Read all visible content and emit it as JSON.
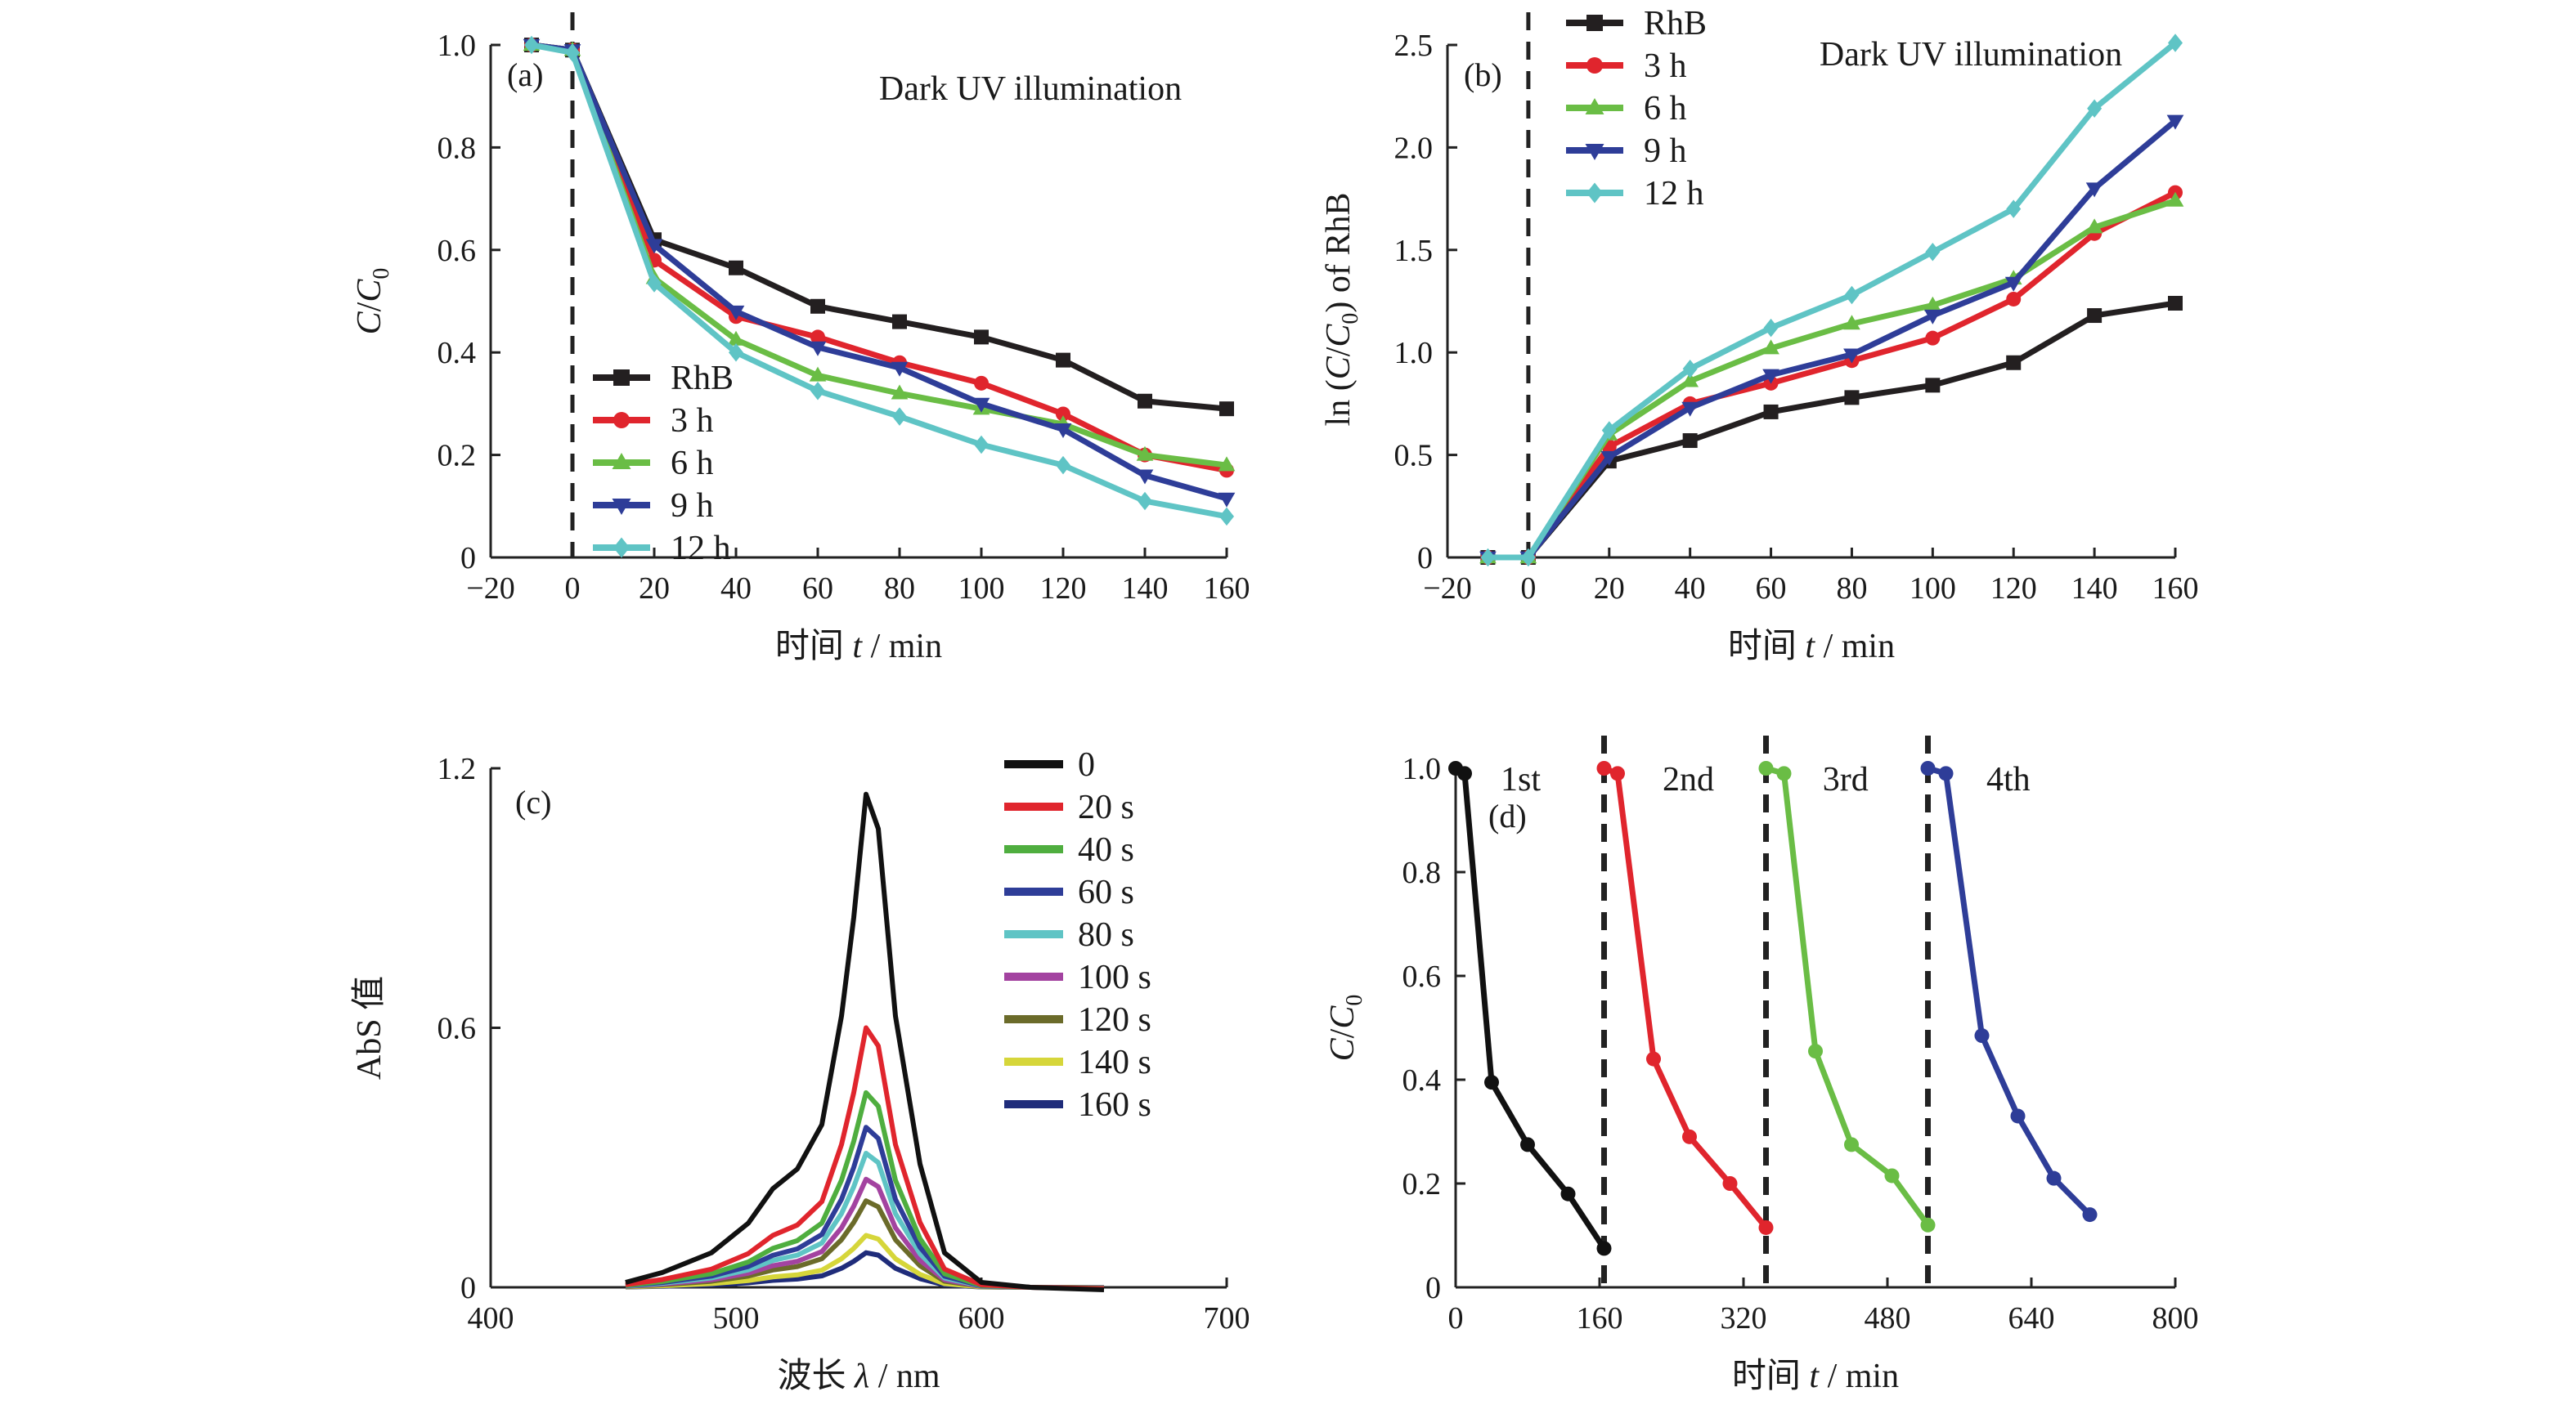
{
  "chart_data": [
    {
      "panel": "(a)",
      "type": "line",
      "annotation": "Dark UV illumination",
      "xlabel_prefix": "时间 ",
      "xlabel_var": "t",
      "xlabel_suffix": " / min",
      "ylabel_var": "C",
      "ylabel_sep": "/",
      "ylabel_var2": "C",
      "ylabel_sub": "0",
      "xlim": [
        -20,
        160
      ],
      "ylim": [
        0,
        1.0
      ],
      "xticks": [
        -20,
        0,
        20,
        40,
        60,
        80,
        100,
        120,
        140,
        160
      ],
      "xtick_labels": [
        "−20",
        "0",
        "20",
        "40",
        "60",
        "80",
        "100",
        "120",
        "140",
        "160"
      ],
      "yticks": [
        0,
        0.2,
        0.4,
        0.6,
        0.8,
        1.0
      ],
      "ytick_labels": [
        "0",
        "0.2",
        "0.4",
        "0.6",
        "0.8",
        "1.0"
      ],
      "dashed_vline_x": 0,
      "legend_position": "bottom-left",
      "x": [
        -10,
        0,
        20,
        40,
        60,
        80,
        100,
        120,
        140,
        160
      ],
      "series": [
        {
          "name": "RhB",
          "color": "#231f20",
          "marker": "square",
          "values": [
            1.0,
            0.99,
            0.62,
            0.565,
            0.49,
            0.46,
            0.43,
            0.385,
            0.305,
            0.29
          ]
        },
        {
          "name": "3 h",
          "color": "#e0252d",
          "marker": "circle",
          "values": [
            1.0,
            0.99,
            0.58,
            0.47,
            0.43,
            0.38,
            0.34,
            0.28,
            0.2,
            0.17
          ]
        },
        {
          "name": "6 h",
          "color": "#6abd45",
          "marker": "triangle-up",
          "values": [
            1.0,
            0.99,
            0.545,
            0.425,
            0.355,
            0.32,
            0.29,
            0.26,
            0.2,
            0.18
          ]
        },
        {
          "name": "9 h",
          "color": "#2e3d98",
          "marker": "triangle-down",
          "values": [
            1.0,
            0.99,
            0.61,
            0.48,
            0.41,
            0.37,
            0.3,
            0.25,
            0.16,
            0.115
          ]
        },
        {
          "name": "12 h",
          "color": "#5fc4c5",
          "marker": "diamond",
          "values": [
            1.0,
            0.985,
            0.535,
            0.4,
            0.325,
            0.275,
            0.22,
            0.18,
            0.11,
            0.08
          ]
        }
      ]
    },
    {
      "panel": "(b)",
      "type": "line",
      "annotation": "Dark UV illumination",
      "xlabel_prefix": "时间 ",
      "xlabel_var": "t",
      "xlabel_suffix": " / min",
      "ylabel_pre": "ln (",
      "ylabel_var": "C",
      "ylabel_sep": "/",
      "ylabel_var2": "C",
      "ylabel_sub": "0",
      "ylabel_post": ") of RhB",
      "xlim": [
        -20,
        160
      ],
      "ylim": [
        0,
        2.5
      ],
      "xticks": [
        -20,
        0,
        20,
        40,
        60,
        80,
        100,
        120,
        140,
        160
      ],
      "xtick_labels": [
        "−20",
        "0",
        "20",
        "40",
        "60",
        "80",
        "100",
        "120",
        "140",
        "160"
      ],
      "yticks": [
        0,
        0.5,
        1.0,
        1.5,
        2.0,
        2.5
      ],
      "ytick_labels": [
        "0",
        "0.5",
        "1.0",
        "1.5",
        "2.0",
        "2.5"
      ],
      "dashed_vline_x": 0,
      "legend_position": "top-left",
      "x": [
        -10,
        0,
        20,
        40,
        60,
        80,
        100,
        120,
        140,
        160
      ],
      "series": [
        {
          "name": "RhB",
          "color": "#231f20",
          "marker": "square",
          "values": [
            0,
            0,
            0.47,
            0.57,
            0.71,
            0.78,
            0.84,
            0.95,
            1.18,
            1.24
          ]
        },
        {
          "name": "3 h",
          "color": "#e0252d",
          "marker": "circle",
          "values": [
            0,
            0,
            0.54,
            0.75,
            0.85,
            0.96,
            1.07,
            1.26,
            1.58,
            1.78
          ]
        },
        {
          "name": "6 h",
          "color": "#6abd45",
          "marker": "triangle-up",
          "values": [
            0,
            0,
            0.6,
            0.86,
            1.02,
            1.14,
            1.23,
            1.36,
            1.61,
            1.74
          ]
        },
        {
          "name": "9 h",
          "color": "#2e3d98",
          "marker": "triangle-down",
          "values": [
            0,
            0,
            0.49,
            0.73,
            0.89,
            0.99,
            1.18,
            1.34,
            1.8,
            2.13
          ]
        },
        {
          "name": "12 h",
          "color": "#5fc4c5",
          "marker": "diamond",
          "values": [
            0,
            0,
            0.62,
            0.92,
            1.12,
            1.28,
            1.49,
            1.7,
            2.19,
            2.51
          ]
        }
      ]
    },
    {
      "panel": "(c)",
      "type": "line",
      "xlabel_prefix": "波长 ",
      "xlabel_var": "λ",
      "xlabel_suffix": " / nm",
      "ylabel": "AbS 值",
      "xlim": [
        400,
        700
      ],
      "ylim": [
        0,
        1.2
      ],
      "xticks": [
        400,
        500,
        600,
        700
      ],
      "xtick_labels": [
        "400",
        "500",
        "600",
        "700"
      ],
      "yticks": [
        0,
        0.6,
        1.2
      ],
      "ytick_labels": [
        "0",
        "0.6",
        "1.2"
      ],
      "legend_position": "top-right",
      "shape_x": [
        455,
        470,
        490,
        505,
        515,
        525,
        535,
        543,
        548,
        553,
        558,
        565,
        575,
        585,
        600,
        620,
        650
      ],
      "shape_y": [
        0.01,
        0.03,
        0.07,
        0.13,
        0.2,
        0.24,
        0.33,
        0.55,
        0.75,
        1.0,
        0.93,
        0.55,
        0.25,
        0.07,
        0.01,
        0.0,
        -0.005
      ],
      "series": [
        {
          "name": "0",
          "color": "#111111",
          "peak": 1.14
        },
        {
          "name": "20 s",
          "color": "#e0252d",
          "peak": 0.6
        },
        {
          "name": "40 s",
          "color": "#4fae3f",
          "peak": 0.45
        },
        {
          "name": "60 s",
          "color": "#2e3d98",
          "peak": 0.37
        },
        {
          "name": "80 s",
          "color": "#5fc4c5",
          "peak": 0.31
        },
        {
          "name": "100 s",
          "color": "#a343a0",
          "peak": 0.25
        },
        {
          "name": "120 s",
          "color": "#6b6b2a",
          "peak": 0.2
        },
        {
          "name": "140 s",
          "color": "#d6d63a",
          "peak": 0.12
        },
        {
          "name": "160 s",
          "color": "#1f2c7a",
          "peak": 0.08
        }
      ]
    },
    {
      "panel": "(d)",
      "type": "line",
      "xlabel_prefix": "时间 ",
      "xlabel_var": "t",
      "xlabel_suffix": " / min",
      "ylabel_var": "C",
      "ylabel_sep": "/",
      "ylabel_var2": "C",
      "ylabel_sub": "0",
      "xlim": [
        0,
        800
      ],
      "ylim": [
        0,
        1.0
      ],
      "xticks": [
        0,
        160,
        320,
        480,
        640,
        800
      ],
      "xtick_labels": [
        "0",
        "160",
        "320",
        "480",
        "640",
        "800"
      ],
      "yticks": [
        0,
        0.2,
        0.4,
        0.6,
        0.8,
        1.0
      ],
      "ytick_labels": [
        "0",
        "0.2",
        "0.4",
        "0.6",
        "0.8",
        "1.0"
      ],
      "dashed_vlines_x": [
        165,
        345,
        525
      ],
      "cycles": [
        {
          "label": "1st",
          "label_x": 50,
          "color": "#111111",
          "x": [
            0,
            10,
            40,
            80,
            125,
            165
          ],
          "values": [
            1.0,
            0.99,
            0.395,
            0.275,
            0.18,
            0.075
          ]
        },
        {
          "label": "2nd",
          "label_x": 230,
          "color": "#e0252d",
          "x": [
            165,
            180,
            220,
            260,
            305,
            345
          ],
          "values": [
            1.0,
            0.99,
            0.44,
            0.29,
            0.2,
            0.115
          ]
        },
        {
          "label": "3rd",
          "label_x": 408,
          "color": "#6abd45",
          "x": [
            345,
            365,
            400,
            440,
            485,
            525
          ],
          "values": [
            1.0,
            0.99,
            0.455,
            0.275,
            0.215,
            0.12
          ]
        },
        {
          "label": "4th",
          "label_x": 590,
          "color": "#2e3d98",
          "x": [
            525,
            545,
            585,
            625,
            665,
            705
          ],
          "values": [
            1.0,
            0.99,
            0.485,
            0.33,
            0.21,
            0.14
          ]
        }
      ]
    }
  ]
}
